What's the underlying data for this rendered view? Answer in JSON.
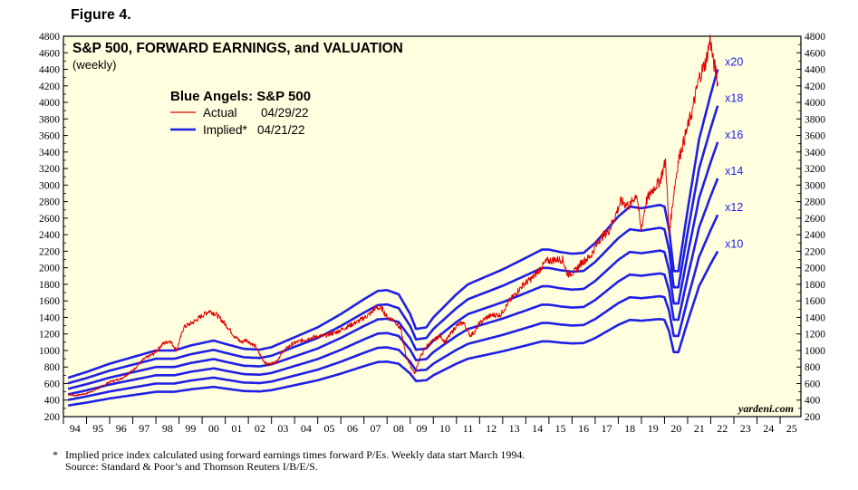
{
  "figure_label": "Figure 4.",
  "footnote": {
    "marker": "*",
    "line1": "Implied price index calculated using forward earnings times forward P/Es. Weekly data start March 1994.",
    "line2": "Source: Standard & Poor’s and Thomson Reuters I/B/E/S."
  },
  "colors": {
    "background": "#ffffe0",
    "actual": "#e00000",
    "implied": "#1f1fe6",
    "axis": "#000000"
  },
  "chart_data": {
    "type": "line",
    "title": "S&P 500, FORWARD EARNINGS, and VALUATION",
    "subtitle": "(weekly)",
    "legend_title": "Blue Angels: S&P 500",
    "legend_placement": "upper-left",
    "legend": [
      {
        "label": "Actual",
        "date": "04/29/22",
        "color": "#e00000"
      },
      {
        "label": "Implied*",
        "date": "04/21/22",
        "color": "#1f1fe6"
      }
    ],
    "watermark": "yardeni.com",
    "grid": false,
    "xlim": [
      1994.0,
      2025.9
    ],
    "ylim": [
      200,
      4800
    ],
    "y_ticks": [
      200,
      400,
      600,
      800,
      1000,
      1200,
      1400,
      1600,
      1800,
      2000,
      2200,
      2400,
      2600,
      2800,
      3000,
      3200,
      3400,
      3600,
      3800,
      4000,
      4200,
      4400,
      4600,
      4800
    ],
    "x_tick_labels": [
      "94",
      "95",
      "96",
      "97",
      "98",
      "99",
      "00",
      "01",
      "02",
      "03",
      "04",
      "05",
      "06",
      "07",
      "08",
      "09",
      "10",
      "11",
      "12",
      "13",
      "14",
      "15",
      "16",
      "17",
      "18",
      "19",
      "20",
      "21",
      "22",
      "23",
      "24",
      "25"
    ],
    "forward_earnings_x10": {
      "x": [
        1994.2,
        1995,
        1996,
        1997,
        1998,
        1998.8,
        1999.5,
        2000.5,
        2001,
        2001.8,
        2002.5,
        2003,
        2004,
        2005,
        2006,
        2007,
        2007.6,
        2008,
        2008.5,
        2009,
        2009.25,
        2009.7,
        2010,
        2011,
        2011.5,
        2012,
        2013,
        2014,
        2014.7,
        2015,
        2015.5,
        2016,
        2016.5,
        2017,
        2018,
        2018.5,
        2019,
        2019.8,
        2020.0,
        2020.2,
        2020.4,
        2020.6,
        2021,
        2021.5,
        2022,
        2022.3
      ],
      "values": [
        335,
        370,
        420,
        460,
        500,
        500,
        530,
        560,
        540,
        510,
        505,
        520,
        580,
        640,
        720,
        810,
        860,
        865,
        840,
        720,
        630,
        640,
        700,
        840,
        900,
        930,
        990,
        1060,
        1110,
        1110,
        1095,
        1085,
        1090,
        1150,
        1310,
        1370,
        1360,
        1380,
        1370,
        1230,
        980,
        980,
        1350,
        1780,
        2050,
        2200
      ]
    },
    "series": [
      {
        "name": "x10",
        "multiple": 10,
        "color": "#1f1fe6"
      },
      {
        "name": "x12",
        "multiple": 12,
        "color": "#1f1fe6"
      },
      {
        "name": "x14",
        "multiple": 14,
        "color": "#1f1fe6"
      },
      {
        "name": "x16",
        "multiple": 16,
        "color": "#1f1fe6"
      },
      {
        "name": "x18",
        "multiple": 18,
        "color": "#1f1fe6"
      },
      {
        "name": "x20",
        "multiple": 20,
        "color": "#1f1fe6"
      },
      {
        "name": "Actual",
        "color": "#e00000",
        "x": [
          1994.2,
          1994.5,
          1995,
          1995.5,
          1996,
          1996.5,
          1997,
          1997.5,
          1997.9,
          1998.3,
          1998.6,
          1998.9,
          1999.2,
          1999.6,
          2000.0,
          2000.3,
          2000.6,
          2000.9,
          2001.2,
          2001.4,
          2001.7,
          2001.9,
          2002.3,
          2002.6,
          2002.8,
          2003.2,
          2003.5,
          2003.9,
          2004.3,
          2004.8,
          2005.3,
          2005.8,
          2006.3,
          2006.8,
          2007.3,
          2007.5,
          2007.8,
          2008.0,
          2008.3,
          2008.6,
          2008.8,
          2009.0,
          2009.2,
          2009.4,
          2009.7,
          2010.0,
          2010.3,
          2010.5,
          2010.8,
          2011.0,
          2011.3,
          2011.6,
          2011.8,
          2012.0,
          2012.3,
          2012.6,
          2012.9,
          2013.3,
          2013.6,
          2013.9,
          2014.3,
          2014.6,
          2014.9,
          2015.3,
          2015.6,
          2015.8,
          2016.1,
          2016.4,
          2016.8,
          2017.2,
          2017.6,
          2017.9,
          2018.1,
          2018.5,
          2018.8,
          2018.98,
          2019.2,
          2019.5,
          2019.8,
          2020.05,
          2020.2,
          2020.4,
          2020.6,
          2020.9,
          2021.2,
          2021.5,
          2021.8,
          2021.98,
          2022.1,
          2022.25,
          2022.33
        ],
        "values": [
          470,
          455,
          480,
          540,
          620,
          660,
          760,
          900,
          960,
          1080,
          1120,
          1000,
          1280,
          1340,
          1420,
          1480,
          1440,
          1350,
          1250,
          1170,
          1100,
          1130,
          1050,
          900,
          830,
          860,
          990,
          1080,
          1120,
          1160,
          1180,
          1220,
          1290,
          1360,
          1450,
          1520,
          1500,
          1400,
          1370,
          1250,
          950,
          820,
          720,
          900,
          1050,
          1120,
          1180,
          1100,
          1220,
          1300,
          1340,
          1180,
          1230,
          1330,
          1400,
          1430,
          1430,
          1600,
          1700,
          1800,
          1880,
          1980,
          2080,
          2100,
          2100,
          1920,
          1950,
          2060,
          2140,
          2350,
          2450,
          2650,
          2800,
          2750,
          2900,
          2450,
          2800,
          2950,
          3050,
          3300,
          2400,
          2900,
          3300,
          3600,
          3900,
          4300,
          4500,
          4770,
          4500,
          4350,
          4150
        ]
      }
    ]
  }
}
